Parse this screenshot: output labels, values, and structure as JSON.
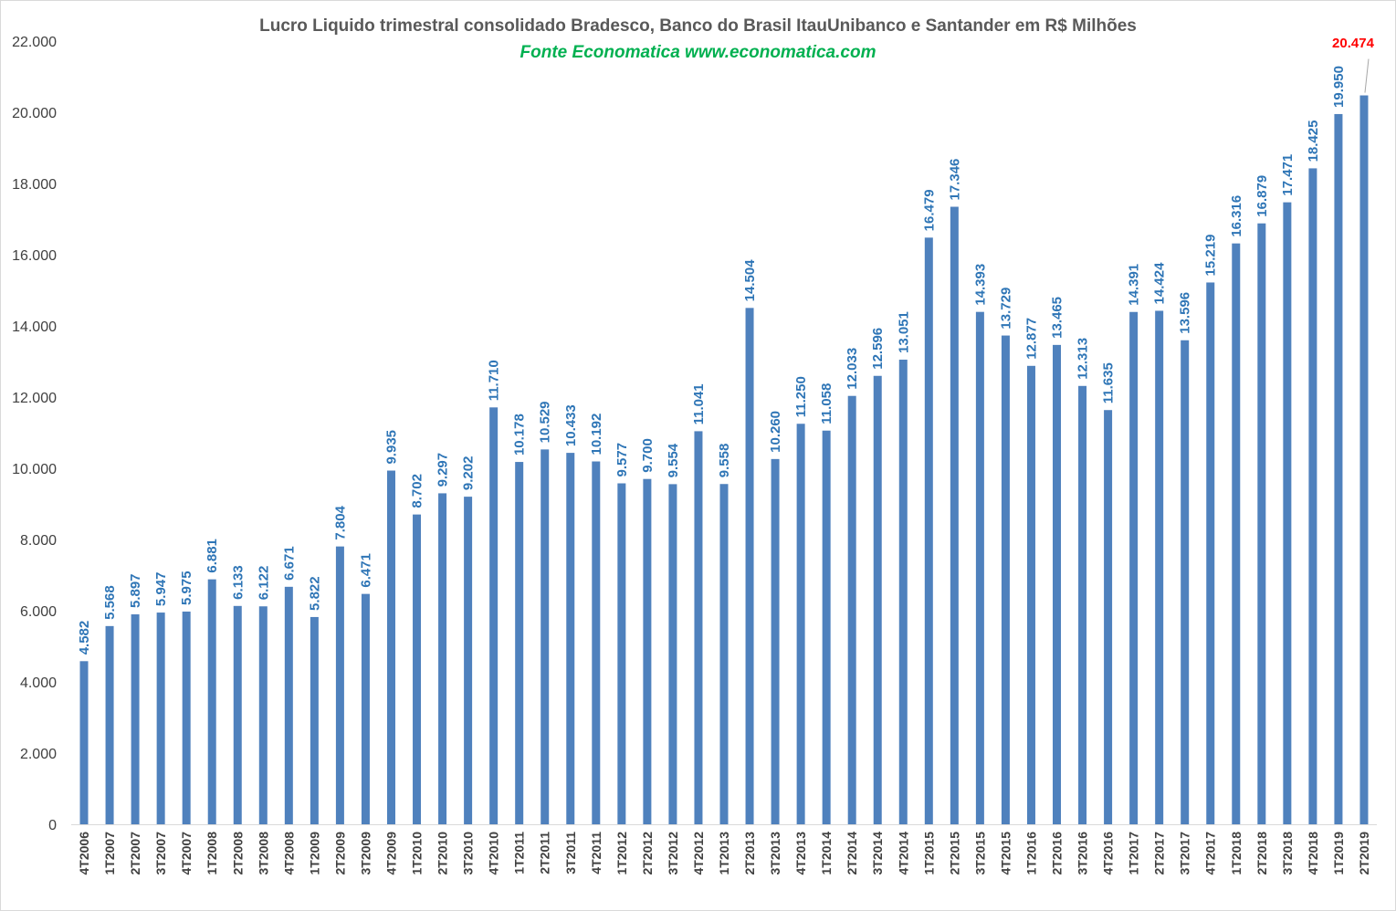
{
  "chart_data": {
    "type": "bar",
    "title": "Lucro Liquido trimestral consolidado Bradesco, Banco do Brasil ItauUnibanco e Santander  em R$ Milhões",
    "subtitle": "Fonte Economatica www.economatica.com",
    "xlabel": "",
    "ylabel": "",
    "ylim": [
      0,
      22000
    ],
    "yticks": [
      0,
      2000,
      4000,
      6000,
      8000,
      10000,
      12000,
      14000,
      16000,
      18000,
      20000,
      22000
    ],
    "ytick_labels": [
      "0",
      "2.000",
      "4.000",
      "6.000",
      "8.000",
      "10.000",
      "12.000",
      "14.000",
      "16.000",
      "18.000",
      "20.000",
      "22.000"
    ],
    "grid": false,
    "legend": "none",
    "bar_color": "#4f81bd",
    "label_color": "#2e75b6",
    "highlight_label_color": "#ff0000",
    "highlight_index": 50,
    "categories": [
      "4T2006",
      "1T2007",
      "2T2007",
      "3T2007",
      "4T2007",
      "1T2008",
      "2T2008",
      "3T2008",
      "4T2008",
      "1T2009",
      "2T2009",
      "3T2009",
      "4T2009",
      "1T2010",
      "2T2010",
      "3T2010",
      "4T2010",
      "1T2011",
      "2T2011",
      "3T2011",
      "4T2011",
      "1T2012",
      "2T2012",
      "3T2012",
      "4T2012",
      "1T2013",
      "2T2013",
      "3T2013",
      "4T2013",
      "1T2014",
      "2T2014",
      "3T2014",
      "4T2014",
      "1T2015",
      "2T2015",
      "3T2015",
      "4T2015",
      "1T2016",
      "2T2016",
      "3T2016",
      "4T2016",
      "1T2017",
      "2T2017",
      "3T2017",
      "4T2017",
      "1T2018",
      "2T2018",
      "3T2018",
      "4T2018",
      "1T2019",
      "2T2019"
    ],
    "values": [
      4582,
      5568,
      5897,
      5947,
      5975,
      6881,
      6133,
      6122,
      6671,
      5822,
      7804,
      6471,
      9935,
      8702,
      9297,
      9202,
      11710,
      10178,
      10529,
      10433,
      10192,
      9577,
      9700,
      9554,
      11041,
      9558,
      14504,
      10260,
      11250,
      11058,
      12033,
      12596,
      13051,
      16479,
      17346,
      14393,
      13729,
      12877,
      13465,
      12313,
      11635,
      14391,
      14424,
      13596,
      15219,
      16316,
      16879,
      17471,
      18425,
      19950,
      20474
    ],
    "value_labels": [
      "4.582",
      "5.568",
      "5.897",
      "5.947",
      "5.975",
      "6.881",
      "6.133",
      "6.122",
      "6.671",
      "5.822",
      "7.804",
      "6.471",
      "9.935",
      "8.702",
      "9.297",
      "9.202",
      "11.710",
      "10.178",
      "10.529",
      "10.433",
      "10.192",
      "9.577",
      "9.700",
      "9.554",
      "11.041",
      "9.558",
      "14.504",
      "10.260",
      "11.250",
      "11.058",
      "12.033",
      "12.596",
      "13.051",
      "16.479",
      "17.346",
      "14.393",
      "13.729",
      "12.877",
      "13.465",
      "12.313",
      "11.635",
      "14.391",
      "14.424",
      "13.596",
      "15.219",
      "16.316",
      "16.879",
      "17.471",
      "18.425",
      "19.950",
      "20.474"
    ]
  }
}
